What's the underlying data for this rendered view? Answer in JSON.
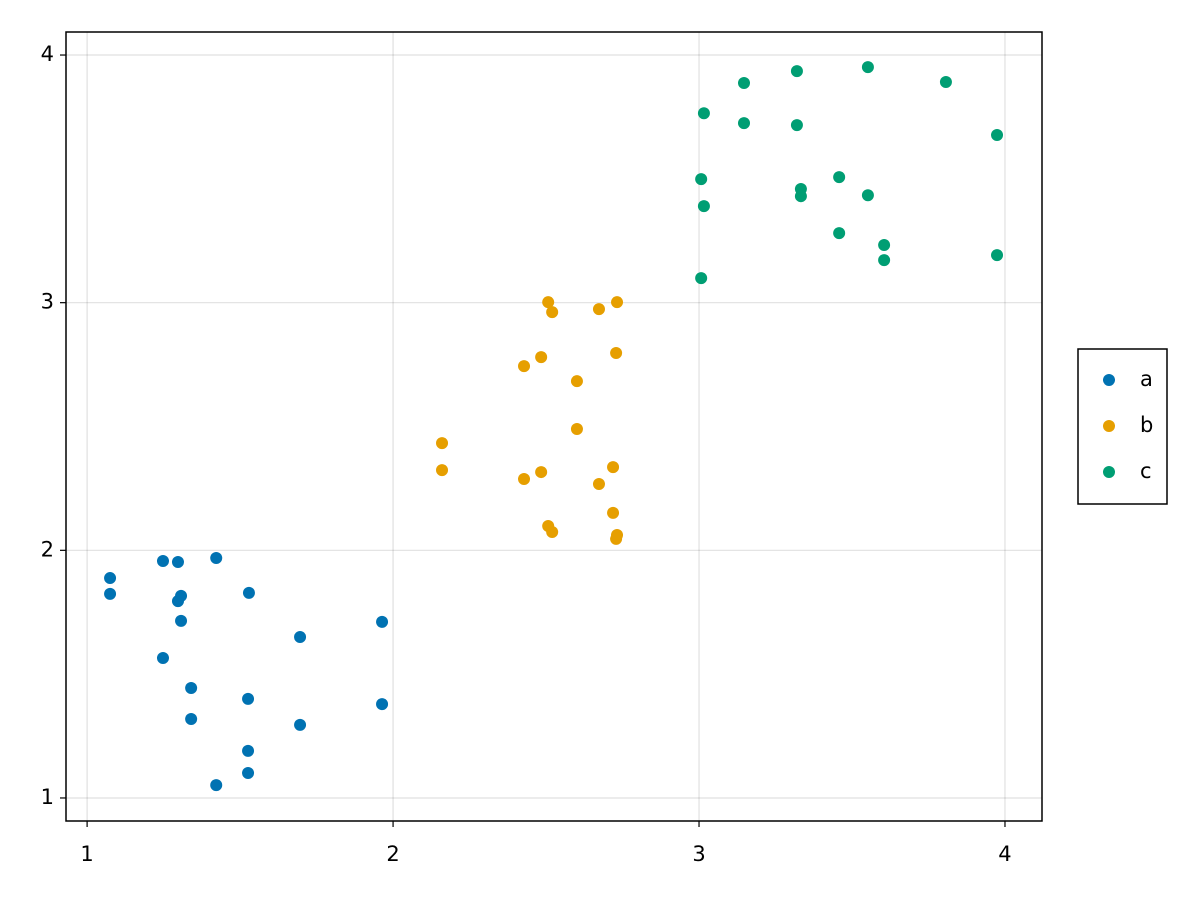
{
  "chart_data": {
    "type": "scatter",
    "xlim": [
      0.931,
      4.121
    ],
    "ylim": [
      0.907,
      4.093
    ],
    "xticks": [
      1,
      2,
      3,
      4
    ],
    "yticks": [
      1,
      2,
      3,
      4
    ],
    "grid": true,
    "legend": "right",
    "series": [
      {
        "name": "a",
        "color": "#0072b2",
        "x": [
          1.075,
          1.075,
          1.248,
          1.297,
          1.422,
          1.307,
          1.297,
          1.307,
          1.529,
          1.696,
          1.964,
          1.248,
          1.34,
          1.526,
          1.34,
          1.696,
          1.964,
          1.526,
          1.526,
          1.422
        ],
        "values": [
          1.888,
          1.824,
          1.957,
          1.953,
          1.969,
          1.816,
          1.795,
          1.715,
          1.828,
          1.65,
          1.711,
          1.565,
          1.444,
          1.4,
          1.319,
          1.295,
          1.379,
          1.19,
          1.101,
          1.052
        ]
      },
      {
        "name": "b",
        "color": "#e69f00",
        "x": [
          2.507,
          2.52,
          2.673,
          2.732,
          2.484,
          2.428,
          2.729,
          2.601,
          2.16,
          2.16,
          2.601,
          2.484,
          2.428,
          2.719,
          2.673,
          2.719,
          2.507,
          2.52,
          2.732,
          2.729
        ],
        "values": [
          3.002,
          2.962,
          2.974,
          3.002,
          2.78,
          2.744,
          2.797,
          2.683,
          2.433,
          2.324,
          2.49,
          2.316,
          2.288,
          2.336,
          2.268,
          2.151,
          2.098,
          2.074,
          2.062,
          2.046
        ]
      },
      {
        "name": "c",
        "color": "#009e73",
        "x": [
          3.016,
          3.147,
          3.32,
          3.552,
          3.807,
          3.147,
          3.32,
          3.974,
          3.007,
          3.016,
          3.333,
          3.333,
          3.458,
          3.552,
          3.458,
          3.605,
          3.605,
          3.974,
          3.007
        ],
        "values": [
          3.765,
          3.887,
          3.935,
          3.951,
          3.891,
          3.725,
          3.717,
          3.677,
          3.499,
          3.39,
          3.459,
          3.43,
          3.507,
          3.434,
          3.281,
          3.233,
          3.172,
          3.192,
          3.099
        ]
      }
    ]
  }
}
